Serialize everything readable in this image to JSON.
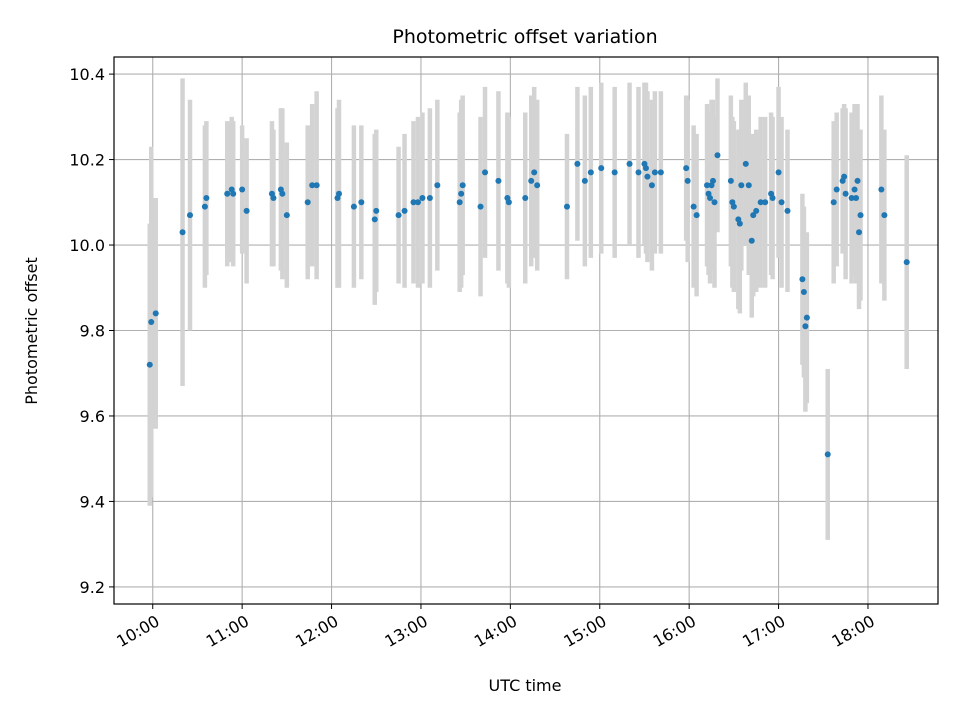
{
  "chart_data": {
    "type": "scatter",
    "title": "Photometric offset variation",
    "xlabel": "UTC time",
    "ylabel": "Photometric offset",
    "x_ticks": [
      "10:00",
      "11:00",
      "12:00",
      "13:00",
      "14:00",
      "15:00",
      "16:00",
      "17:00",
      "18:00"
    ],
    "y_ticks": [
      "9.2",
      "9.4",
      "9.6",
      "9.8",
      "10.0",
      "10.2",
      "10.4"
    ],
    "xlim": [
      "09:34",
      "18:47"
    ],
    "ylim": [
      9.16,
      10.44
    ],
    "grid": true,
    "colors": {
      "points": "#1f77b4",
      "error_bars": "#d3d3d3",
      "grid": "#b0b0b0"
    },
    "points": [
      {
        "x": "09:58",
        "y": 9.72,
        "err": 0.33
      },
      {
        "x": "09:59",
        "y": 9.82,
        "err": 0.41
      },
      {
        "x": "10:02",
        "y": 9.84,
        "err": 0.27
      },
      {
        "x": "10:20",
        "y": 10.03,
        "err": 0.36
      },
      {
        "x": "10:25",
        "y": 10.07,
        "err": 0.27
      },
      {
        "x": "10:35",
        "y": 10.09,
        "err": 0.19
      },
      {
        "x": "10:36",
        "y": 10.11,
        "err": 0.18
      },
      {
        "x": "10:50",
        "y": 10.12,
        "err": 0.17
      },
      {
        "x": "10:53",
        "y": 10.13,
        "err": 0.17
      },
      {
        "x": "10:54",
        "y": 10.12,
        "err": 0.17
      },
      {
        "x": "11:00",
        "y": 10.13,
        "err": 0.15
      },
      {
        "x": "11:03",
        "y": 10.08,
        "err": 0.17
      },
      {
        "x": "11:20",
        "y": 10.12,
        "err": 0.17
      },
      {
        "x": "11:21",
        "y": 10.11,
        "err": 0.16
      },
      {
        "x": "11:26",
        "y": 10.13,
        "err": 0.19
      },
      {
        "x": "11:27",
        "y": 10.12,
        "err": 0.2
      },
      {
        "x": "11:30",
        "y": 10.07,
        "err": 0.17
      },
      {
        "x": "11:44",
        "y": 10.1,
        "err": 0.18
      },
      {
        "x": "11:47",
        "y": 10.14,
        "err": 0.19
      },
      {
        "x": "11:50",
        "y": 10.14,
        "err": 0.22
      },
      {
        "x": "12:04",
        "y": 10.11,
        "err": 0.21
      },
      {
        "x": "12:05",
        "y": 10.12,
        "err": 0.22
      },
      {
        "x": "12:15",
        "y": 10.09,
        "err": 0.19
      },
      {
        "x": "12:20",
        "y": 10.1,
        "err": 0.18
      },
      {
        "x": "12:29",
        "y": 10.06,
        "err": 0.2
      },
      {
        "x": "12:30",
        "y": 10.08,
        "err": 0.19
      },
      {
        "x": "12:45",
        "y": 10.07,
        "err": 0.16
      },
      {
        "x": "12:49",
        "y": 10.08,
        "err": 0.18
      },
      {
        "x": "12:55",
        "y": 10.1,
        "err": 0.19
      },
      {
        "x": "12:58",
        "y": 10.1,
        "err": 0.2
      },
      {
        "x": "13:01",
        "y": 10.11,
        "err": 0.2
      },
      {
        "x": "13:06",
        "y": 10.11,
        "err": 0.21
      },
      {
        "x": "13:11",
        "y": 10.14,
        "err": 0.2
      },
      {
        "x": "13:26",
        "y": 10.1,
        "err": 0.21
      },
      {
        "x": "13:27",
        "y": 10.12,
        "err": 0.22
      },
      {
        "x": "13:28",
        "y": 10.14,
        "err": 0.21
      },
      {
        "x": "13:40",
        "y": 10.09,
        "err": 0.21
      },
      {
        "x": "13:43",
        "y": 10.17,
        "err": 0.2
      },
      {
        "x": "13:52",
        "y": 10.15,
        "err": 0.21
      },
      {
        "x": "13:58",
        "y": 10.11,
        "err": 0.2
      },
      {
        "x": "13:59",
        "y": 10.1,
        "err": 0.2
      },
      {
        "x": "14:10",
        "y": 10.11,
        "err": 0.2
      },
      {
        "x": "14:14",
        "y": 10.15,
        "err": 0.2
      },
      {
        "x": "14:16",
        "y": 10.17,
        "err": 0.2
      },
      {
        "x": "14:18",
        "y": 10.14,
        "err": 0.2
      },
      {
        "x": "14:38",
        "y": 10.09,
        "err": 0.17
      },
      {
        "x": "14:45",
        "y": 10.19,
        "err": 0.18
      },
      {
        "x": "14:50",
        "y": 10.15,
        "err": 0.2
      },
      {
        "x": "14:54",
        "y": 10.17,
        "err": 0.2
      },
      {
        "x": "15:01",
        "y": 10.18,
        "err": 0.2
      },
      {
        "x": "15:10",
        "y": 10.17,
        "err": 0.2
      },
      {
        "x": "15:20",
        "y": 10.19,
        "err": 0.19
      },
      {
        "x": "15:26",
        "y": 10.17,
        "err": 0.2
      },
      {
        "x": "15:30",
        "y": 10.19,
        "err": 0.19
      },
      {
        "x": "15:31",
        "y": 10.18,
        "err": 0.2
      },
      {
        "x": "15:32",
        "y": 10.16,
        "err": 0.2
      },
      {
        "x": "15:35",
        "y": 10.14,
        "err": 0.2
      },
      {
        "x": "15:37",
        "y": 10.17,
        "err": 0.19
      },
      {
        "x": "15:41",
        "y": 10.17,
        "err": 0.19
      },
      {
        "x": "15:58",
        "y": 10.18,
        "err": 0.17
      },
      {
        "x": "15:59",
        "y": 10.15,
        "err": 0.19
      },
      {
        "x": "16:03",
        "y": 10.09,
        "err": 0.19
      },
      {
        "x": "16:05",
        "y": 10.07,
        "err": 0.19
      },
      {
        "x": "16:12",
        "y": 10.14,
        "err": 0.19
      },
      {
        "x": "16:13",
        "y": 10.12,
        "err": 0.19
      },
      {
        "x": "16:14",
        "y": 10.11,
        "err": 0.2
      },
      {
        "x": "16:15",
        "y": 10.14,
        "err": 0.2
      },
      {
        "x": "16:16",
        "y": 10.15,
        "err": 0.19
      },
      {
        "x": "16:17",
        "y": 10.1,
        "err": 0.2
      },
      {
        "x": "16:19",
        "y": 10.21,
        "err": 0.18
      },
      {
        "x": "16:28",
        "y": 10.15,
        "err": 0.2
      },
      {
        "x": "16:29",
        "y": 10.1,
        "err": 0.2
      },
      {
        "x": "16:30",
        "y": 10.09,
        "err": 0.2
      },
      {
        "x": "16:33",
        "y": 10.06,
        "err": 0.21
      },
      {
        "x": "16:34",
        "y": 10.05,
        "err": 0.21
      },
      {
        "x": "16:35",
        "y": 10.14,
        "err": 0.2
      },
      {
        "x": "16:38",
        "y": 10.19,
        "err": 0.19
      },
      {
        "x": "16:40",
        "y": 10.14,
        "err": 0.21
      },
      {
        "x": "16:42",
        "y": 10.01,
        "err": 0.18
      },
      {
        "x": "16:43",
        "y": 10.07,
        "err": 0.19
      },
      {
        "x": "16:45",
        "y": 10.08,
        "err": 0.19
      },
      {
        "x": "16:48",
        "y": 10.1,
        "err": 0.2
      },
      {
        "x": "16:51",
        "y": 10.1,
        "err": 0.2
      },
      {
        "x": "16:55",
        "y": 10.12,
        "err": 0.19
      },
      {
        "x": "16:56",
        "y": 10.11,
        "err": 0.19
      },
      {
        "x": "17:00",
        "y": 10.17,
        "err": 0.2
      },
      {
        "x": "17:02",
        "y": 10.1,
        "err": 0.2
      },
      {
        "x": "17:06",
        "y": 10.08,
        "err": 0.19
      },
      {
        "x": "17:16",
        "y": 9.92,
        "err": 0.2
      },
      {
        "x": "17:17",
        "y": 9.89,
        "err": 0.2
      },
      {
        "x": "17:18",
        "y": 9.81,
        "err": 0.2
      },
      {
        "x": "17:19",
        "y": 9.83,
        "err": 0.2
      },
      {
        "x": "17:33",
        "y": 9.51,
        "err": 0.2
      },
      {
        "x": "17:37",
        "y": 10.1,
        "err": 0.19
      },
      {
        "x": "17:39",
        "y": 10.13,
        "err": 0.18
      },
      {
        "x": "17:43",
        "y": 10.15,
        "err": 0.17
      },
      {
        "x": "17:44",
        "y": 10.16,
        "err": 0.17
      },
      {
        "x": "17:45",
        "y": 10.12,
        "err": 0.2
      },
      {
        "x": "17:49",
        "y": 10.11,
        "err": 0.2
      },
      {
        "x": "17:51",
        "y": 10.13,
        "err": 0.2
      },
      {
        "x": "17:52",
        "y": 10.11,
        "err": 0.2
      },
      {
        "x": "17:53",
        "y": 10.15,
        "err": 0.18
      },
      {
        "x": "17:54",
        "y": 10.03,
        "err": 0.18
      },
      {
        "x": "17:55",
        "y": 10.07,
        "err": 0.2
      },
      {
        "x": "18:09",
        "y": 10.13,
        "err": 0.22
      },
      {
        "x": "18:11",
        "y": 10.07,
        "err": 0.2
      },
      {
        "x": "18:26",
        "y": 9.96,
        "err": 0.25
      }
    ]
  }
}
